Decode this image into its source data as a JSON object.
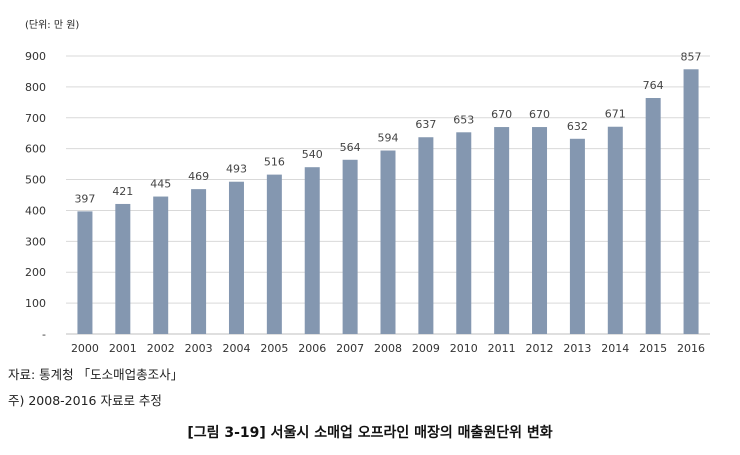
{
  "chart_data": {
    "type": "bar",
    "unit_label": "(단위: 만 원)",
    "categories": [
      "2000",
      "2001",
      "2002",
      "2003",
      "2004",
      "2005",
      "2006",
      "2007",
      "2008",
      "2009",
      "2010",
      "2011",
      "2012",
      "2013",
      "2014",
      "2015",
      "2016"
    ],
    "values": [
      397,
      421,
      445,
      469,
      493,
      516,
      540,
      564,
      594,
      637,
      653,
      670,
      670,
      632,
      671,
      764,
      857
    ],
    "ylim": [
      0,
      900
    ],
    "yticks": [
      "-",
      "100",
      "200",
      "300",
      "400",
      "500",
      "600",
      "700",
      "800",
      "900"
    ],
    "grid": true,
    "bar_color": "#8497B0",
    "grid_color": "#D9D9D9"
  },
  "notes": {
    "source": "자료: 통계청 「도소매업총조사」",
    "estimate": "주) 2008-2016 자료로 추정"
  },
  "caption": "[그림 3-19] 서울시 소매업 오프라인 매장의 매출원단위 변화"
}
